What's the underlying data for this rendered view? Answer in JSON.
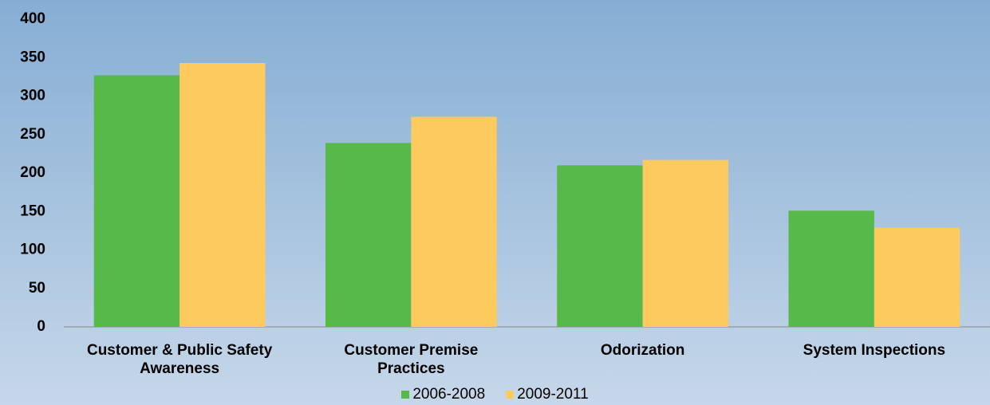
{
  "chart_data": {
    "type": "bar",
    "categories": [
      "Customer & Public Safety Awareness",
      "Customer Premise Practices",
      "Odorization",
      "System Inspections"
    ],
    "series": [
      {
        "name": "2006-2008",
        "color": "#58b94b",
        "values": [
          327,
          239,
          210,
          151
        ]
      },
      {
        "name": "2009-2011",
        "color": "#fdca5d",
        "values": [
          343,
          273,
          217,
          129
        ]
      }
    ],
    "ylim": [
      0,
      400
    ],
    "yticks": [
      0,
      50,
      100,
      150,
      200,
      250,
      300,
      350,
      400
    ],
    "grid": false,
    "legend": "bottom"
  }
}
